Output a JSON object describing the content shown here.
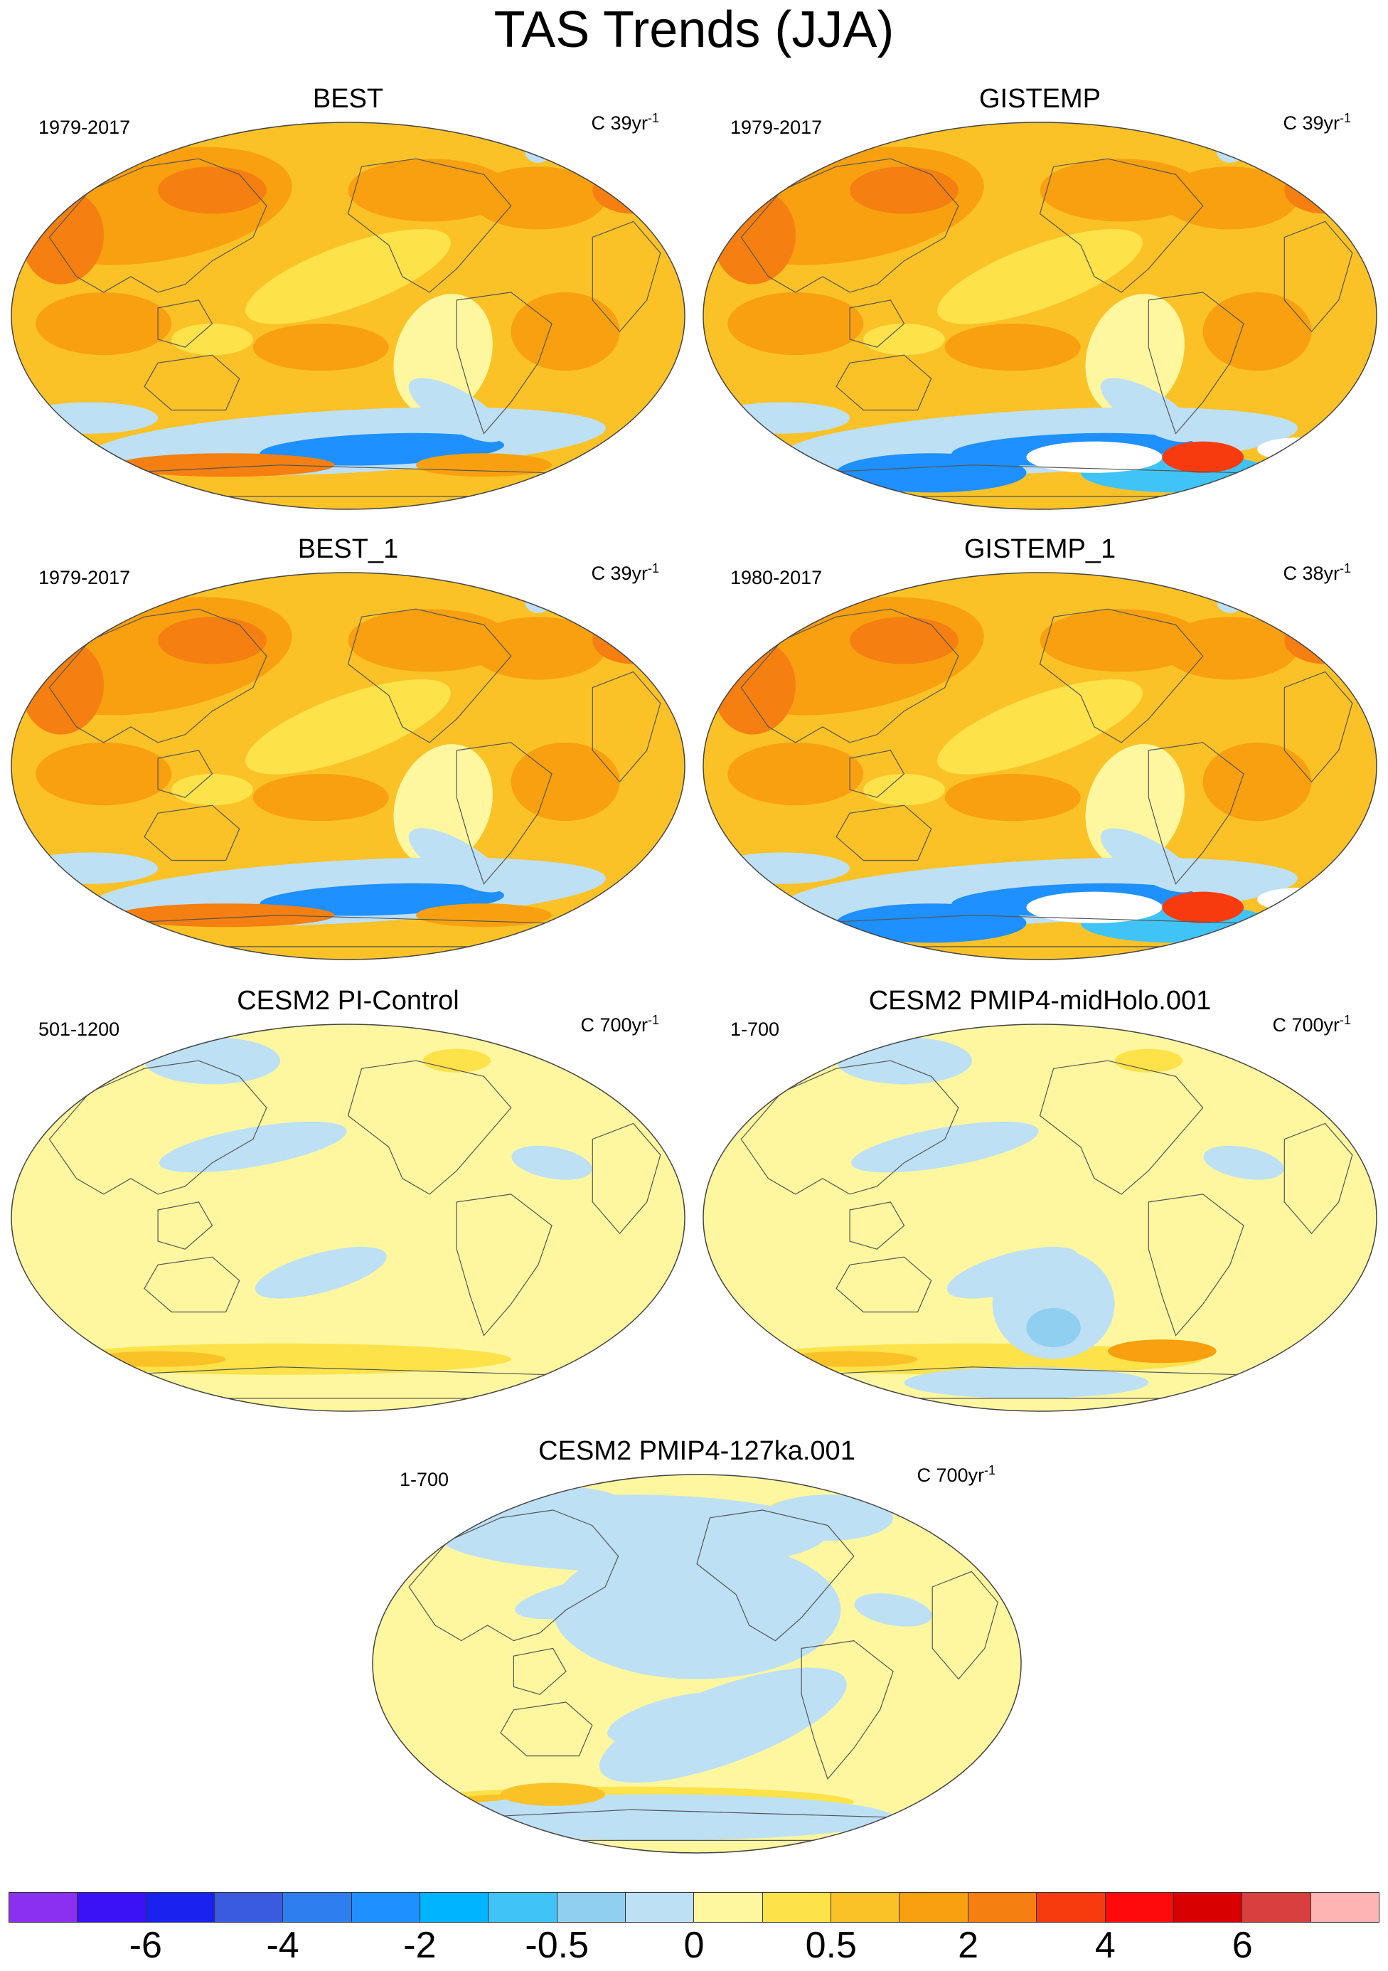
{
  "title": "TAS Trends (JJA)",
  "panels": [
    {
      "name": "BEST",
      "period": "1979-2017",
      "units_prefix": "C 39yr",
      "units_exp": "-1",
      "style": "obs-best"
    },
    {
      "name": "GISTEMP",
      "period": "1979-2017",
      "units_prefix": "C 39yr",
      "units_exp": "-1",
      "style": "obs-gis"
    },
    {
      "name": "BEST_1",
      "period": "1979-2017",
      "units_prefix": "C 39yr",
      "units_exp": "-1",
      "style": "obs-best"
    },
    {
      "name": "GISTEMP_1",
      "period": "1980-2017",
      "units_prefix": "C 38yr",
      "units_exp": "-1",
      "style": "obs-gis"
    },
    {
      "name": "CESM2 PI-Control",
      "period": "501-1200",
      "units_prefix": "C 700yr",
      "units_exp": "-1",
      "style": "model-pi"
    },
    {
      "name": "CESM2 PMIP4-midHolo.001",
      "period": "1-700",
      "units_prefix": "C 700yr",
      "units_exp": "-1",
      "style": "model-mh"
    },
    {
      "name": "CESM2 PMIP4-127ka.001",
      "period": "1-700",
      "units_prefix": "C 700yr",
      "units_exp": "-1",
      "style": "model-127"
    }
  ],
  "colorbar": {
    "colors": [
      "#8b2ff0",
      "#3a12f5",
      "#1a22f0",
      "#3a5ae0",
      "#2f7ef0",
      "#1e90ff",
      "#00b4ff",
      "#40c4f8",
      "#90cff0",
      "#bde0f5",
      "#fef7a0",
      "#fde24a",
      "#fbc228",
      "#f9a010",
      "#f57f10",
      "#f83b0e",
      "#ff0a0a",
      "#d80000",
      "#d84040",
      "#ffb4b4"
    ],
    "tick_labels": [
      "-6",
      "-4",
      "-2",
      "-0.5",
      "0",
      "0.5",
      "2",
      "4",
      "6"
    ]
  }
}
